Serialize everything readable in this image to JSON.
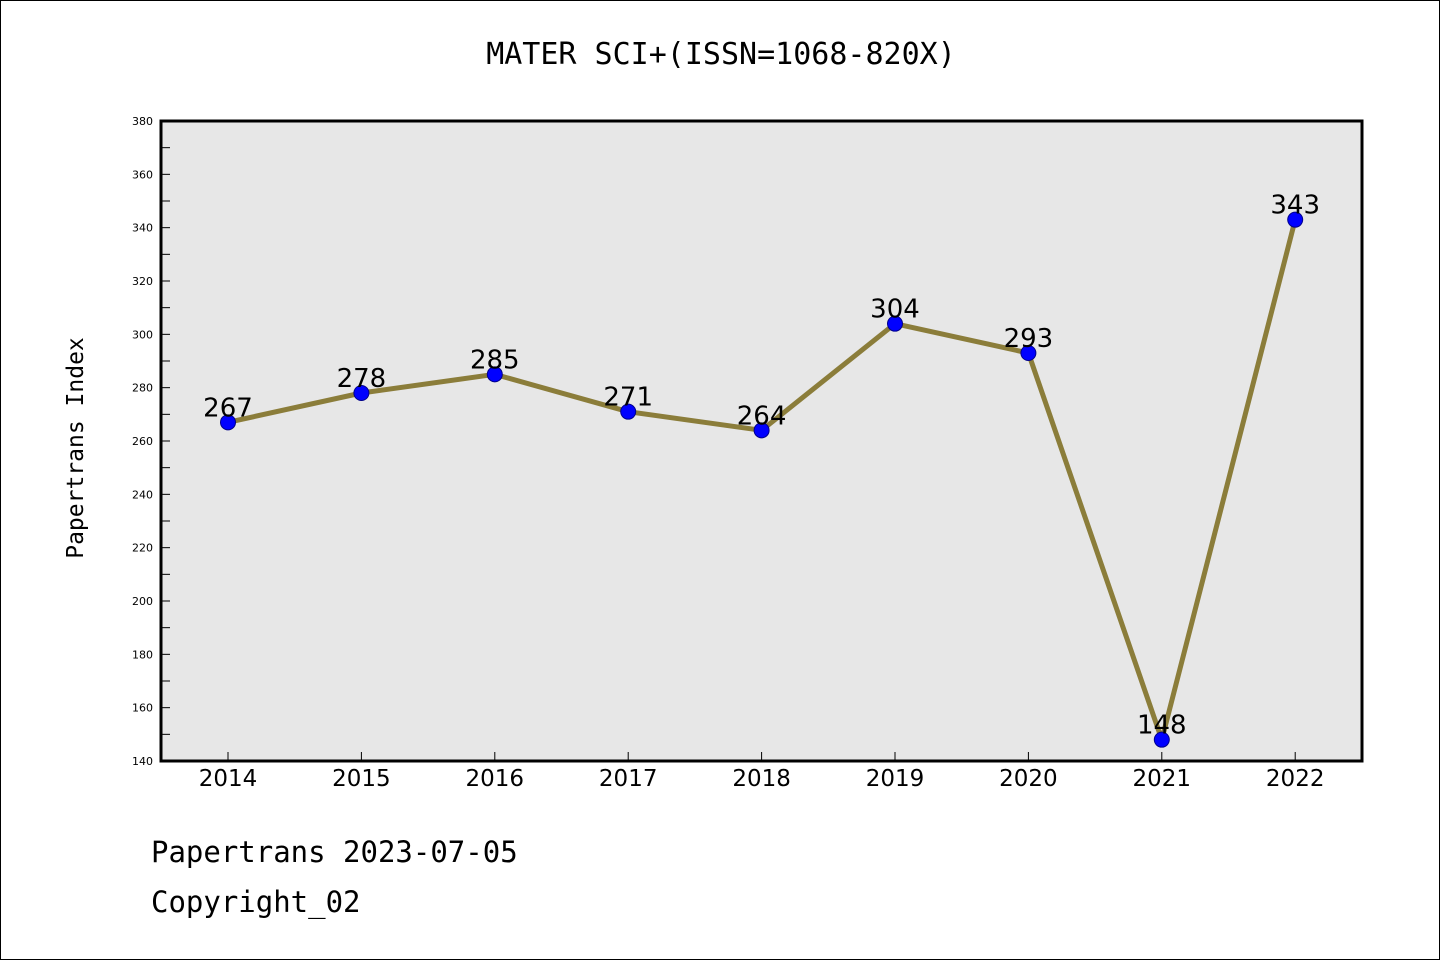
{
  "chart_data": {
    "type": "line",
    "title": "MATER SCI+(ISSN=1068-820X)",
    "xlabel": "",
    "ylabel": "Papertrans Index",
    "categories": [
      "2014",
      "2015",
      "2016",
      "2017",
      "2018",
      "2019",
      "2020",
      "2021",
      "2022"
    ],
    "series": [
      {
        "values": [
          267,
          278,
          285,
          271,
          264,
          304,
          293,
          148,
          343
        ]
      }
    ],
    "ylim": [
      140,
      380
    ],
    "yticks": [
      140,
      160,
      180,
      200,
      220,
      240,
      260,
      280,
      300,
      320,
      340,
      360,
      380
    ],
    "grid": false,
    "data_labels": true,
    "colors": {
      "line": "#8B7D3A",
      "marker": "#0000FF",
      "plot_background": "#E7E7E7"
    }
  },
  "footer": {
    "line1": "Papertrans 2023-07-05",
    "line2": "Copyright_02"
  }
}
